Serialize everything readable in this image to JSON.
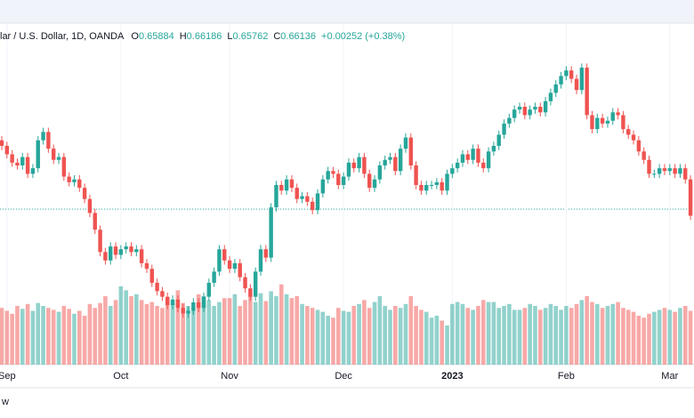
{
  "chart_data": {
    "type": "candlestick",
    "title": "lar / U.S. Dollar, 1D, OANDA",
    "ohlc": [
      {
        "label": "O",
        "value": 0.65884
      },
      {
        "label": "H",
        "value": 0.66186
      },
      {
        "label": "L",
        "value": 0.65762
      },
      {
        "label": "C",
        "value": 0.66136
      }
    ],
    "change": "+0.00252 (+0.38%)",
    "footer": "w",
    "up_color": "#26a69a",
    "down_color": "#ef5350",
    "ylim": [
      0.6057,
      0.7203
    ],
    "volume_lim": [
      0,
      100
    ],
    "categories": [
      null,
      "Sep",
      null,
      null,
      null,
      null,
      null,
      null,
      null,
      null,
      null,
      null,
      null,
      null,
      null,
      null,
      null,
      null,
      null,
      null,
      null,
      null,
      null,
      "Oct",
      null,
      null,
      null,
      null,
      null,
      null,
      null,
      null,
      null,
      null,
      null,
      null,
      null,
      null,
      null,
      null,
      null,
      null,
      null,
      null,
      "Nov",
      null,
      null,
      null,
      null,
      null,
      null,
      null,
      null,
      null,
      null,
      null,
      null,
      null,
      null,
      null,
      null,
      null,
      null,
      null,
      null,
      null,
      "Dec",
      null,
      null,
      null,
      null,
      null,
      null,
      null,
      null,
      null,
      null,
      null,
      null,
      null,
      null,
      null,
      null,
      null,
      null,
      null,
      null,
      "2023",
      null,
      null,
      null,
      null,
      null,
      null,
      null,
      null,
      null,
      null,
      null,
      null,
      null,
      null,
      null,
      null,
      null,
      null,
      null,
      null,
      null,
      "Feb",
      null,
      null,
      null,
      null,
      null,
      null,
      null,
      null,
      null,
      null,
      null,
      null,
      null,
      null,
      null,
      null,
      null,
      null,
      null,
      "Mar",
      null,
      null,
      null,
      null
    ],
    "candles": [
      [
        0.686,
        0.6875,
        0.6825,
        0.684
      ],
      [
        0.684,
        0.6855,
        0.6795,
        0.681
      ],
      [
        0.681,
        0.6825,
        0.6765,
        0.678
      ],
      [
        0.678,
        0.6795,
        0.6755,
        0.677
      ],
      [
        0.677,
        0.6815,
        0.6755,
        0.68
      ],
      [
        0.68,
        0.6815,
        0.6725,
        0.674
      ],
      [
        0.674,
        0.6775,
        0.6725,
        0.676
      ],
      [
        0.676,
        0.6875,
        0.6745,
        0.686
      ],
      [
        0.686,
        0.6905,
        0.6845,
        0.689
      ],
      [
        0.689,
        0.6905,
        0.6815,
        0.683
      ],
      [
        0.683,
        0.6845,
        0.6775,
        0.679
      ],
      [
        0.679,
        0.6815,
        0.6775,
        0.68
      ],
      [
        0.68,
        0.6815,
        0.6715,
        0.673
      ],
      [
        0.673,
        0.6745,
        0.6695,
        0.671
      ],
      [
        0.671,
        0.6735,
        0.6695,
        0.672
      ],
      [
        0.672,
        0.6735,
        0.6675,
        0.669
      ],
      [
        0.669,
        0.6705,
        0.6635,
        0.665
      ],
      [
        0.665,
        0.6665,
        0.6585,
        0.66
      ],
      [
        0.66,
        0.6615,
        0.6525,
        0.654
      ],
      [
        0.654,
        0.6555,
        0.6445,
        0.646
      ],
      [
        0.646,
        0.6475,
        0.6415,
        0.643
      ],
      [
        0.643,
        0.6495,
        0.6415,
        0.648
      ],
      [
        0.648,
        0.6495,
        0.6435,
        0.645
      ],
      [
        0.645,
        0.6485,
        0.6435,
        0.647
      ],
      [
        0.647,
        0.6495,
        0.6455,
        0.648
      ],
      [
        0.648,
        0.6495,
        0.6445,
        0.646
      ],
      [
        0.646,
        0.6485,
        0.6445,
        0.647
      ],
      [
        0.647,
        0.6485,
        0.6405,
        0.642
      ],
      [
        0.642,
        0.6435,
        0.6385,
        0.64
      ],
      [
        0.64,
        0.6415,
        0.6335,
        0.635
      ],
      [
        0.635,
        0.6365,
        0.6305,
        0.632
      ],
      [
        0.632,
        0.6335,
        0.6285,
        0.63
      ],
      [
        0.63,
        0.6315,
        0.6255,
        0.627
      ],
      [
        0.627,
        0.6305,
        0.6255,
        0.629
      ],
      [
        0.629,
        0.6305,
        0.6245,
        0.626
      ],
      [
        0.626,
        0.6275,
        0.6225,
        0.624
      ],
      [
        0.624,
        0.6265,
        0.6225,
        0.625
      ],
      [
        0.625,
        0.6295,
        0.6235,
        0.628
      ],
      [
        0.628,
        0.6295,
        0.6245,
        0.626
      ],
      [
        0.626,
        0.6315,
        0.6245,
        0.63
      ],
      [
        0.63,
        0.6365,
        0.6285,
        0.635
      ],
      [
        0.635,
        0.6405,
        0.6335,
        0.639
      ],
      [
        0.639,
        0.6485,
        0.6375,
        0.647
      ],
      [
        0.647,
        0.6485,
        0.6415,
        0.643
      ],
      [
        0.643,
        0.6445,
        0.6385,
        0.64
      ],
      [
        0.64,
        0.6435,
        0.6385,
        0.642
      ],
      [
        0.642,
        0.6435,
        0.6355,
        0.637
      ],
      [
        0.637,
        0.6385,
        0.6315,
        0.633
      ],
      [
        0.633,
        0.6345,
        0.6285,
        0.63
      ],
      [
        0.63,
        0.6405,
        0.6285,
        0.639
      ],
      [
        0.639,
        0.6485,
        0.6375,
        0.647
      ],
      [
        0.647,
        0.6485,
        0.6425,
        0.644
      ],
      [
        0.644,
        0.6635,
        0.6425,
        0.662
      ],
      [
        0.662,
        0.6715,
        0.6605,
        0.67
      ],
      [
        0.67,
        0.6715,
        0.6665,
        0.668
      ],
      [
        0.668,
        0.6735,
        0.6665,
        0.672
      ],
      [
        0.672,
        0.6735,
        0.6675,
        0.669
      ],
      [
        0.669,
        0.6705,
        0.6635,
        0.665
      ],
      [
        0.665,
        0.6675,
        0.6635,
        0.666
      ],
      [
        0.666,
        0.6675,
        0.6625,
        0.664
      ],
      [
        0.664,
        0.6655,
        0.6595,
        0.661
      ],
      [
        0.661,
        0.6685,
        0.6595,
        0.667
      ],
      [
        0.667,
        0.6735,
        0.6655,
        0.672
      ],
      [
        0.672,
        0.6765,
        0.6705,
        0.675
      ],
      [
        0.675,
        0.6765,
        0.6725,
        0.674
      ],
      [
        0.674,
        0.6755,
        0.6685,
        0.67
      ],
      [
        0.67,
        0.6745,
        0.6685,
        0.673
      ],
      [
        0.673,
        0.6795,
        0.6715,
        0.678
      ],
      [
        0.678,
        0.6795,
        0.6745,
        0.676
      ],
      [
        0.676,
        0.6815,
        0.6745,
        0.68
      ],
      [
        0.68,
        0.6815,
        0.6725,
        0.674
      ],
      [
        0.674,
        0.6755,
        0.6675,
        0.669
      ],
      [
        0.669,
        0.6735,
        0.6675,
        0.672
      ],
      [
        0.672,
        0.6785,
        0.6705,
        0.677
      ],
      [
        0.677,
        0.6805,
        0.6755,
        0.679
      ],
      [
        0.679,
        0.6815,
        0.6775,
        0.68
      ],
      [
        0.68,
        0.6815,
        0.6735,
        0.675
      ],
      [
        0.675,
        0.6845,
        0.6735,
        0.683
      ],
      [
        0.683,
        0.6885,
        0.6815,
        0.687
      ],
      [
        0.687,
        0.6885,
        0.6755,
        0.677
      ],
      [
        0.677,
        0.6785,
        0.6685,
        0.67
      ],
      [
        0.67,
        0.6715,
        0.6665,
        0.668
      ],
      [
        0.668,
        0.6715,
        0.6665,
        0.67
      ],
      [
        0.67,
        0.6715,
        0.6685,
        0.67
      ],
      [
        0.67,
        0.6725,
        0.6685,
        0.671
      ],
      [
        0.671,
        0.6725,
        0.6665,
        0.668
      ],
      [
        0.668,
        0.6755,
        0.6665,
        0.674
      ],
      [
        0.674,
        0.6775,
        0.6725,
        0.676
      ],
      [
        0.676,
        0.6795,
        0.6745,
        0.678
      ],
      [
        0.678,
        0.6825,
        0.6765,
        0.681
      ],
      [
        0.681,
        0.6825,
        0.6775,
        0.679
      ],
      [
        0.679,
        0.6845,
        0.6775,
        0.683
      ],
      [
        0.683,
        0.6845,
        0.6765,
        0.678
      ],
      [
        0.678,
        0.6795,
        0.6745,
        0.676
      ],
      [
        0.676,
        0.6835,
        0.6745,
        0.682
      ],
      [
        0.682,
        0.6855,
        0.6805,
        0.684
      ],
      [
        0.684,
        0.6895,
        0.6825,
        0.688
      ],
      [
        0.688,
        0.6935,
        0.6865,
        0.692
      ],
      [
        0.692,
        0.6955,
        0.6905,
        0.694
      ],
      [
        0.694,
        0.6985,
        0.6925,
        0.697
      ],
      [
        0.697,
        0.6995,
        0.6955,
        0.698
      ],
      [
        0.698,
        0.6995,
        0.6935,
        0.695
      ],
      [
        0.695,
        0.6985,
        0.6935,
        0.697
      ],
      [
        0.697,
        0.6995,
        0.6955,
        0.698
      ],
      [
        0.698,
        0.6995,
        0.6945,
        0.696
      ],
      [
        0.696,
        0.7015,
        0.6945,
        0.7
      ],
      [
        0.7,
        0.7045,
        0.6985,
        0.703
      ],
      [
        0.703,
        0.7075,
        0.7015,
        0.706
      ],
      [
        0.706,
        0.7105,
        0.7045,
        0.709
      ],
      [
        0.709,
        0.7125,
        0.7075,
        0.711
      ],
      [
        0.711,
        0.7125,
        0.7065,
        0.708
      ],
      [
        0.708,
        0.7095,
        0.7025,
        0.704
      ],
      [
        0.704,
        0.7135,
        0.7025,
        0.712
      ],
      [
        0.712,
        0.7135,
        0.6935,
        0.695
      ],
      [
        0.695,
        0.6965,
        0.6885,
        0.69
      ],
      [
        0.69,
        0.6955,
        0.6885,
        0.694
      ],
      [
        0.694,
        0.6955,
        0.6905,
        0.692
      ],
      [
        0.692,
        0.6945,
        0.6905,
        0.693
      ],
      [
        0.693,
        0.6975,
        0.6915,
        0.696
      ],
      [
        0.696,
        0.6975,
        0.6935,
        0.695
      ],
      [
        0.695,
        0.6965,
        0.6885,
        0.69
      ],
      [
        0.69,
        0.6915,
        0.6865,
        0.688
      ],
      [
        0.688,
        0.6895,
        0.6845,
        0.686
      ],
      [
        0.686,
        0.6875,
        0.6805,
        0.682
      ],
      [
        0.682,
        0.6835,
        0.6775,
        0.679
      ],
      [
        0.679,
        0.6805,
        0.6725,
        0.674
      ],
      [
        0.674,
        0.6755,
        0.6725,
        0.674
      ],
      [
        0.674,
        0.6775,
        0.6725,
        0.676
      ],
      [
        0.676,
        0.6775,
        0.6735,
        0.675
      ],
      [
        0.675,
        0.6775,
        0.6735,
        0.676
      ],
      [
        0.676,
        0.6775,
        0.6725,
        0.674
      ],
      [
        0.674,
        0.6775,
        0.6725,
        0.676
      ],
      [
        0.676,
        0.6775,
        0.6705,
        0.672
      ],
      [
        0.672,
        0.6735,
        0.6575,
        0.659
      ]
    ],
    "volumes": [
      58,
      55,
      52,
      60,
      57,
      62,
      55,
      63,
      60,
      58,
      56,
      54,
      60,
      57,
      52,
      55,
      50,
      62,
      58,
      63,
      70,
      60,
      66,
      80,
      76,
      70,
      72,
      66,
      62,
      64,
      60,
      58,
      68,
      62,
      76,
      63,
      60,
      58,
      72,
      70,
      66,
      60,
      64,
      68,
      68,
      72,
      60,
      66,
      70,
      64,
      73,
      65,
      75,
      70,
      82,
      72,
      68,
      70,
      62,
      60,
      58,
      56,
      54,
      50,
      48,
      58,
      55,
      54,
      60,
      62,
      66,
      58,
      64,
      70,
      60,
      56,
      60,
      58,
      62,
      70,
      60,
      56,
      54,
      48,
      50,
      45,
      40,
      62,
      64,
      62,
      58,
      56,
      60,
      66,
      64,
      64,
      58,
      60,
      62,
      56,
      56,
      58,
      62,
      60,
      56,
      58,
      62,
      60,
      56,
      60,
      58,
      62,
      66,
      70,
      64,
      62,
      58,
      60,
      62,
      64,
      58,
      56,
      54,
      50,
      48,
      52,
      54,
      56,
      58,
      56,
      54,
      58,
      60,
      55
    ]
  }
}
